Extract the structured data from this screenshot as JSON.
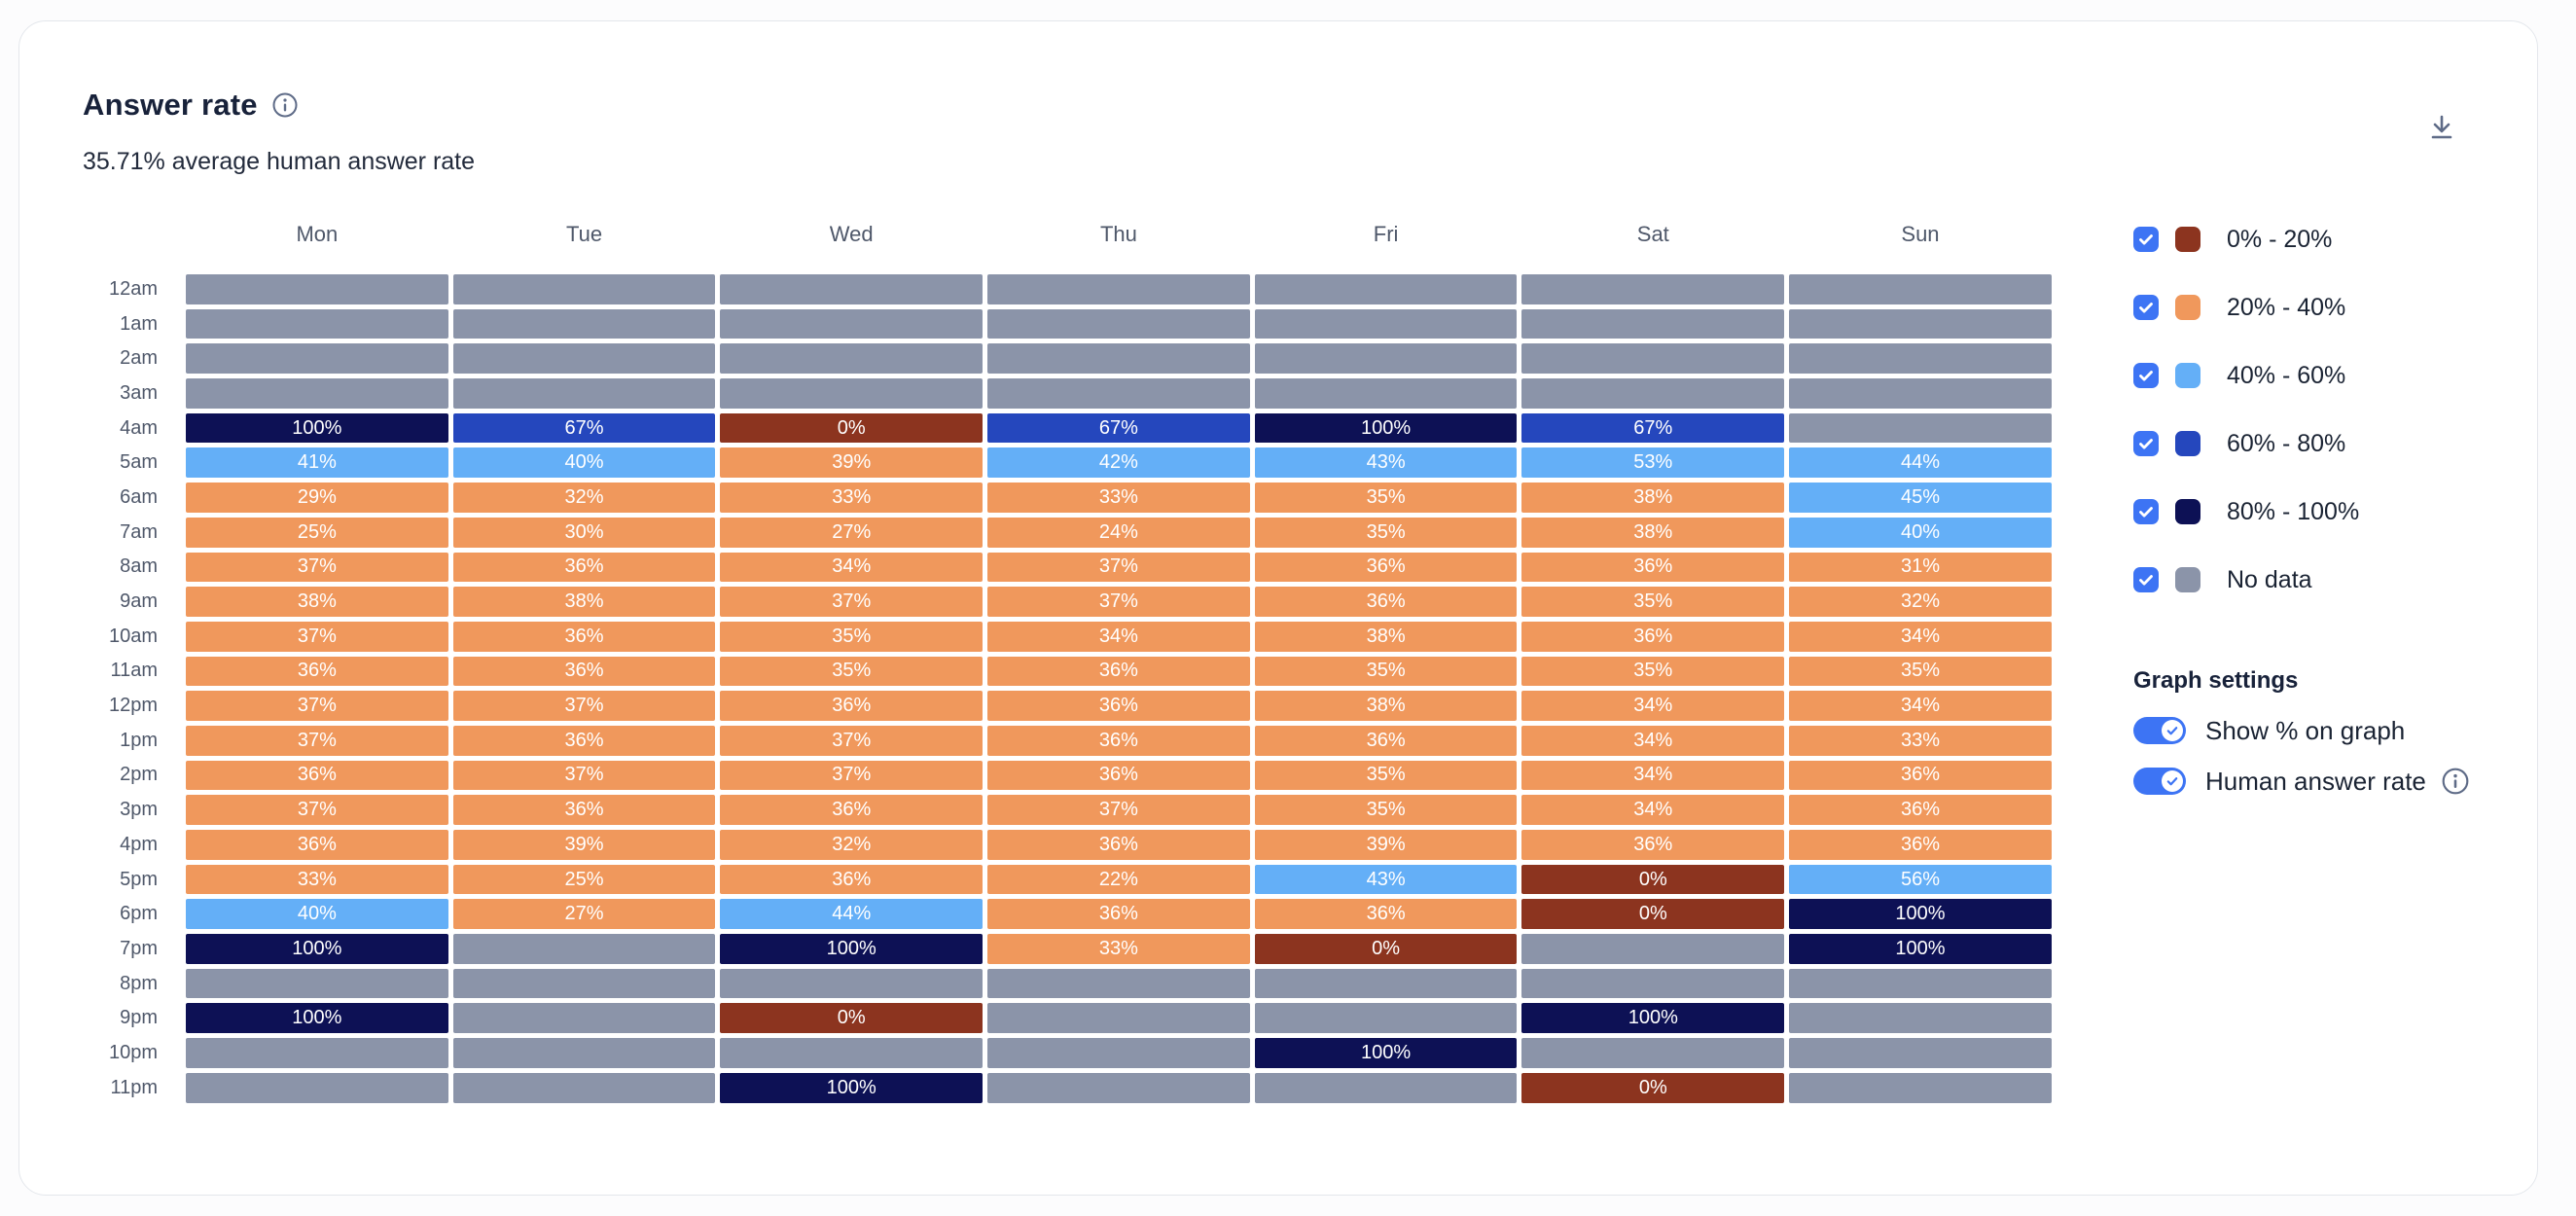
{
  "header": {
    "title": "Answer rate",
    "subtitle": "35.71% average human answer rate"
  },
  "buckets": [
    {
      "id": "b1",
      "label": "0% - 20%",
      "color": "#8c341f",
      "min": 0,
      "max": 20
    },
    {
      "id": "b2",
      "label": "20% - 40%",
      "color": "#f0985c",
      "min": 20,
      "max": 40
    },
    {
      "id": "b3",
      "label": "40% - 60%",
      "color": "#64aff7",
      "min": 40,
      "max": 60
    },
    {
      "id": "b4",
      "label": "60% - 80%",
      "color": "#2547bd",
      "min": 60,
      "max": 80
    },
    {
      "id": "b5",
      "label": "80% - 100%",
      "color": "#0d1155",
      "min": 80,
      "max": 100
    },
    {
      "id": "nodata",
      "label": "No data",
      "color": "#8b94a9"
    }
  ],
  "legend": {
    "items": [
      {
        "label": "0% - 20%",
        "color": "#8c341f",
        "checked": true
      },
      {
        "label": "20% - 40%",
        "color": "#f0985c",
        "checked": true
      },
      {
        "label": "40% - 60%",
        "color": "#64aff7",
        "checked": true
      },
      {
        "label": "60% - 80%",
        "color": "#2547bd",
        "checked": true
      },
      {
        "label": "80% - 100%",
        "color": "#0d1155",
        "checked": true
      },
      {
        "label": "No data",
        "color": "#8b94a9",
        "checked": true
      }
    ]
  },
  "settings": {
    "heading": "Graph settings",
    "toggles": [
      {
        "label": "Show % on graph",
        "on": true,
        "info": false
      },
      {
        "label": "Human answer rate",
        "on": true,
        "info": true
      }
    ]
  },
  "colors": {
    "accent": "#3d74f4",
    "icon": "#5e6b87",
    "cell_text": "#ffffff",
    "label_text": "#4f586a"
  },
  "chart_data": {
    "type": "heatmap",
    "title": "Answer rate",
    "subtitle": "35.71% average human answer rate",
    "unit": "percent",
    "value_labels_shown": true,
    "legend_position": "right",
    "x_categories": [
      "Mon",
      "Tue",
      "Wed",
      "Thu",
      "Fri",
      "Sat",
      "Sun"
    ],
    "y_categories": [
      "12am",
      "1am",
      "2am",
      "3am",
      "4am",
      "5am",
      "6am",
      "7am",
      "8am",
      "9am",
      "10am",
      "11am",
      "12pm",
      "1pm",
      "2pm",
      "3pm",
      "4pm",
      "5pm",
      "6pm",
      "7pm",
      "8pm",
      "9pm",
      "10pm",
      "11pm"
    ],
    "values": [
      [
        null,
        null,
        null,
        null,
        null,
        null,
        null
      ],
      [
        null,
        null,
        null,
        null,
        null,
        null,
        null
      ],
      [
        null,
        null,
        null,
        null,
        null,
        null,
        null
      ],
      [
        null,
        null,
        null,
        null,
        null,
        null,
        null
      ],
      [
        100,
        67,
        0,
        67,
        100,
        67,
        null
      ],
      [
        41,
        40,
        39,
        42,
        43,
        53,
        44
      ],
      [
        29,
        32,
        33,
        33,
        35,
        38,
        45
      ],
      [
        25,
        30,
        27,
        24,
        35,
        38,
        40
      ],
      [
        37,
        36,
        34,
        37,
        36,
        36,
        31
      ],
      [
        38,
        38,
        37,
        37,
        36,
        35,
        32
      ],
      [
        37,
        36,
        35,
        34,
        38,
        36,
        34
      ],
      [
        36,
        36,
        35,
        36,
        35,
        35,
        35
      ],
      [
        37,
        37,
        36,
        36,
        38,
        34,
        34
      ],
      [
        37,
        36,
        37,
        36,
        36,
        34,
        33
      ],
      [
        36,
        37,
        37,
        36,
        35,
        34,
        36
      ],
      [
        37,
        36,
        36,
        37,
        35,
        34,
        36
      ],
      [
        36,
        39,
        32,
        36,
        39,
        36,
        36
      ],
      [
        33,
        25,
        36,
        22,
        43,
        0,
        56
      ],
      [
        40,
        27,
        44,
        36,
        36,
        0,
        100
      ],
      [
        100,
        null,
        100,
        33,
        0,
        null,
        100
      ],
      [
        null,
        null,
        null,
        null,
        null,
        null,
        null
      ],
      [
        100,
        null,
        0,
        null,
        null,
        100,
        null
      ],
      [
        null,
        null,
        null,
        null,
        100,
        null,
        null
      ],
      [
        null,
        null,
        100,
        null,
        null,
        0,
        null
      ]
    ],
    "bucket_ranges": [
      "0% - 20%",
      "20% - 40%",
      "40% - 60%",
      "60% - 80%",
      "80% - 100%",
      "No data"
    ]
  }
}
